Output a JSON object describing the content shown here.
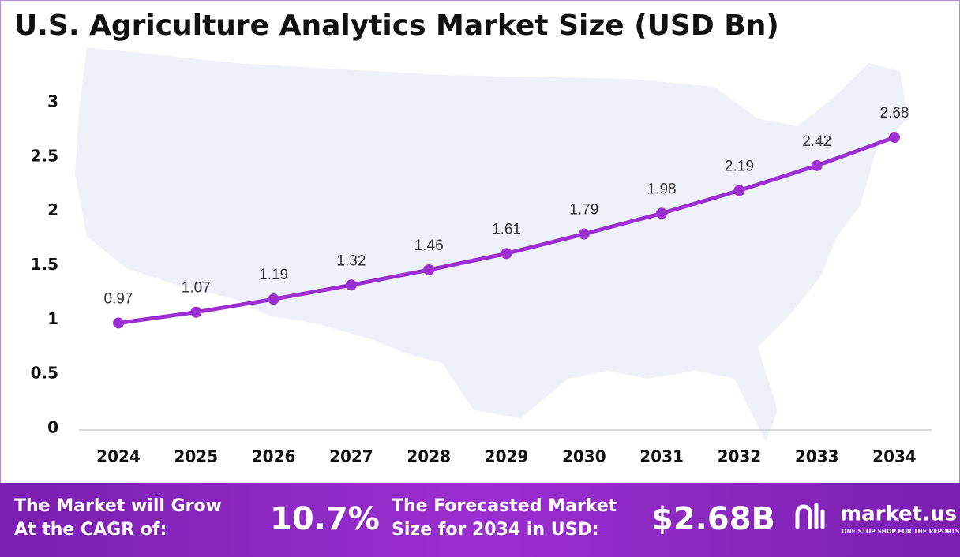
{
  "chart_data": {
    "type": "line",
    "title": "U.S. Agriculture Analytics Market Size (USD Bn)",
    "categories": [
      "2024",
      "2025",
      "2026",
      "2027",
      "2028",
      "2029",
      "2030",
      "2031",
      "2032",
      "2033",
      "2034"
    ],
    "values": [
      0.97,
      1.07,
      1.19,
      1.32,
      1.46,
      1.61,
      1.79,
      1.98,
      2.19,
      2.42,
      2.68
    ],
    "color": "#9b2fd1",
    "ylim": [
      0,
      3
    ],
    "yticks": [
      0,
      0.5,
      1,
      1.5,
      2,
      2.5,
      3
    ],
    "grid": false
  },
  "footer": {
    "cagr_label_line1": "The Market will Grow",
    "cagr_label_line2": "At the CAGR of:",
    "cagr_value": "10.7%",
    "forecast_label_line1": "The Forecasted Market",
    "forecast_label_line2": "Size for 2034 in USD:",
    "forecast_value": "$2.68B",
    "brand": "market.us",
    "tagline": "ONE STOP SHOP FOR THE REPORTS"
  }
}
